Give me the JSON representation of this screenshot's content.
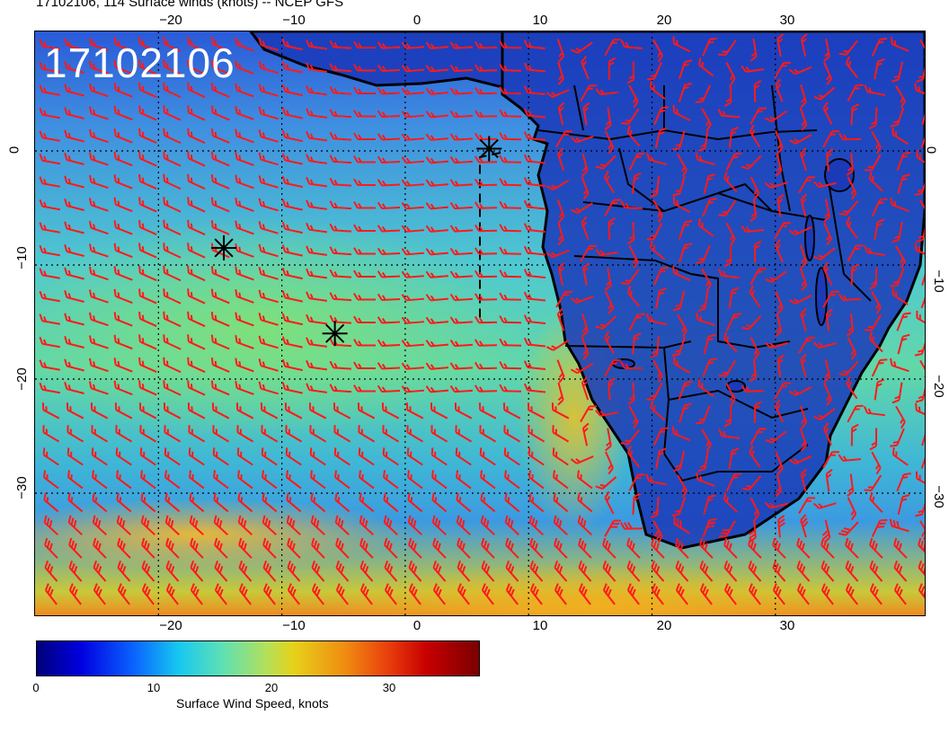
{
  "title": "17102106, 114 Surface winds (knots) -- NCEP GFS",
  "map": {
    "big_label": "17102106",
    "top_ticks": [
      "−20",
      "−10",
      "0",
      "10",
      "20",
      "30"
    ],
    "bottom_ticks": [
      "−20",
      "−10",
      "0",
      "10",
      "20",
      "30"
    ],
    "left_ticks": [
      "0",
      "−10",
      "−20",
      "−30"
    ],
    "right_ticks": [
      "0",
      "−10",
      "−20",
      "−30"
    ]
  },
  "colorbar": {
    "ticks": [
      "0",
      "10",
      "20",
      "30"
    ],
    "label": "Surface Wind Speed, knots",
    "colors": [
      "#00007a",
      "#0000e0",
      "#0a64ff",
      "#16c8f0",
      "#5ee0b4",
      "#b4e05a",
      "#e6d21a",
      "#f08a10",
      "#e83a0c",
      "#c80000",
      "#7a0000"
    ]
  },
  "colors": {
    "barb": "#ff1a1a",
    "coast": "#000000",
    "grid": "#000000",
    "land": "#1a3ab8"
  },
  "markers": [
    {
      "icon": "asterisk-icon",
      "lon": -14.7,
      "lat": -8.5
    },
    {
      "icon": "asterisk-icon",
      "lon": -5.7,
      "lat": -16.0
    },
    {
      "icon": "asterisk-icon",
      "lon": 6.8,
      "lat": 0.2
    }
  ]
}
